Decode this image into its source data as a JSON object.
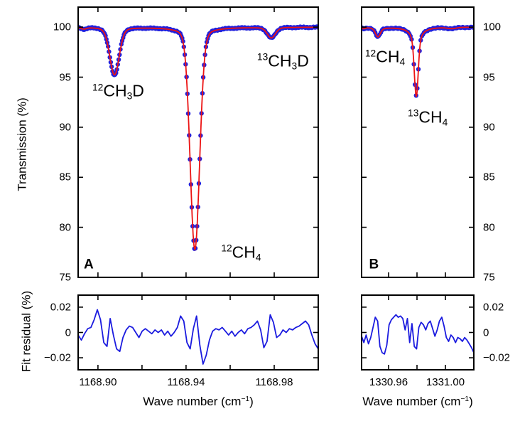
{
  "figure": {
    "background": "#ffffff",
    "colors": {
      "points": "#2121dd",
      "fit": "#ec1414",
      "residual": "#1b1bdf",
      "axes": "#000000"
    },
    "axis_titles": {
      "transmission": "Transmission (%)",
      "fit_residual": "Fit residual (%)",
      "wavenumber_prefix": "Wave number (cm",
      "wavenumber_sup": "−1",
      "wavenumber_suffix": ")"
    }
  },
  "chart_data": [
    {
      "id": "transmission-a",
      "type": "scatter+line",
      "panel_letter": "A",
      "xlim": [
        1168.891,
        1169.0
      ],
      "ylim": [
        75,
        102
      ],
      "baseline": 100,
      "sample_step": 0.0004,
      "y_label_side": "left",
      "show_x_tick_labels": false,
      "x_ticks": [
        {
          "v": 1168.9,
          "label": "1168.90"
        },
        {
          "v": 1168.92
        },
        {
          "v": 1168.94,
          "label": "1168.94"
        },
        {
          "v": 1168.96
        },
        {
          "v": 1168.98,
          "label": "1168.98"
        },
        {
          "v": 1169.0
        }
      ],
      "y_ticks": [
        {
          "v": 100,
          "label": "100"
        },
        {
          "v": 95,
          "label": "95"
        },
        {
          "v": 90,
          "label": "90"
        },
        {
          "v": 85,
          "label": "85"
        },
        {
          "v": 80,
          "label": "80"
        },
        {
          "v": 75,
          "label": "75"
        }
      ],
      "peaks": [
        {
          "species": "baseline-ripple",
          "center": 1168.8935,
          "depth": 0.15,
          "sigma": 0.0012,
          "lor_frac": 0.0,
          "gamma": 0.002
        },
        {
          "species": "12CH3D",
          "center": 1168.9075,
          "depth": 4.75,
          "sigma": 0.0021,
          "lor_frac": 0.12,
          "gamma": 0.0038
        },
        {
          "species": "12CH4",
          "center": 1168.944,
          "depth": 22.2,
          "sigma": 0.0021,
          "lor_frac": 0.1,
          "gamma": 0.0038
        },
        {
          "species": "13CH3D",
          "center": 1168.9787,
          "depth": 1.05,
          "sigma": 0.0018,
          "lor_frac": 0.15,
          "gamma": 0.0032
        }
      ],
      "annotations": [
        {
          "name": "species-label-12ch3d",
          "style": "species",
          "x": 1168.9092,
          "y": 93.6,
          "parts": [
            [
              "sup",
              "12"
            ],
            [
              "t",
              "CH"
            ],
            [
              "sub",
              "3"
            ],
            [
              "t",
              "D"
            ]
          ]
        },
        {
          "name": "species-label-13ch3d",
          "style": "species",
          "x": 1168.984,
          "y": 96.6,
          "parts": [
            [
              "sup",
              "13"
            ],
            [
              "t",
              "CH"
            ],
            [
              "sub",
              "3"
            ],
            [
              "t",
              "D"
            ]
          ]
        },
        {
          "name": "species-label-12ch4-a",
          "style": "species",
          "x": 1168.965,
          "y": 77.5,
          "parts": [
            [
              "sup",
              "12"
            ],
            [
              "t",
              "CH"
            ],
            [
              "sub",
              "4"
            ]
          ]
        },
        {
          "name": "panel-letter-a",
          "style": "letter",
          "x": 1168.8958,
          "y": 76.3,
          "parts": [
            [
              "t",
              "A"
            ]
          ]
        }
      ]
    },
    {
      "id": "transmission-b",
      "type": "scatter+line",
      "panel_letter": "B",
      "xlim": [
        1330.941,
        1331.02
      ],
      "ylim": [
        75,
        102
      ],
      "baseline": 100,
      "sample_step": 0.0008,
      "y_label_side": "right",
      "show_x_tick_labels": false,
      "x_ticks": [
        {
          "v": 1330.96,
          "label": "1330.96"
        },
        {
          "v": 1330.98
        },
        {
          "v": 1331.0,
          "label": "1331.00"
        }
      ],
      "y_ticks": [
        {
          "v": 100,
          "label": "100"
        },
        {
          "v": 95,
          "label": "95"
        },
        {
          "v": 90,
          "label": "90"
        },
        {
          "v": 85,
          "label": "85"
        },
        {
          "v": 80,
          "label": "80"
        },
        {
          "v": 75,
          "label": "75"
        }
      ],
      "peaks": [
        {
          "species": "baseline-ripple",
          "center": 1330.9425,
          "depth": 0.12,
          "sigma": 0.0012,
          "lor_frac": 0.0,
          "gamma": 0.002
        },
        {
          "species": "12CH4",
          "center": 1330.9525,
          "depth": 0.95,
          "sigma": 0.0016,
          "lor_frac": 0.25,
          "gamma": 0.004
        },
        {
          "species": "13CH4",
          "center": 1330.9795,
          "depth": 6.9,
          "sigma": 0.0013,
          "lor_frac": 0.3,
          "gamma": 0.00325
        },
        {
          "species": "baseline-ripple-2",
          "center": 1331.0045,
          "depth": 0.12,
          "sigma": 0.003,
          "lor_frac": 0.0,
          "gamma": 0.004
        }
      ],
      "annotations": [
        {
          "name": "species-label-12ch4-b",
          "style": "species",
          "x": 1330.9575,
          "y": 97.0,
          "parts": [
            [
              "sup",
              "12"
            ],
            [
              "t",
              "CH"
            ],
            [
              "sub",
              "4"
            ]
          ]
        },
        {
          "name": "species-label-13ch4-b",
          "style": "species",
          "x": 1330.9876,
          "y": 91.0,
          "parts": [
            [
              "sup",
              "13"
            ],
            [
              "t",
              "CH"
            ],
            [
              "sub",
              "4"
            ]
          ]
        },
        {
          "name": "panel-letter-b",
          "style": "letter",
          "x": 1330.9497,
          "y": 76.3,
          "parts": [
            [
              "t",
              "B"
            ]
          ]
        }
      ]
    },
    {
      "id": "residual-a",
      "type": "line",
      "xlim": [
        1168.891,
        1169.0
      ],
      "ylim": [
        -0.0295,
        0.0295
      ],
      "y_label_side": "left",
      "show_x_tick_labels": true,
      "x_ticks": [
        {
          "v": 1168.9,
          "label": "1168.90"
        },
        {
          "v": 1168.92
        },
        {
          "v": 1168.94,
          "label": "1168.94"
        },
        {
          "v": 1168.96
        },
        {
          "v": 1168.98,
          "label": "1168.98"
        },
        {
          "v": 1169.0
        }
      ],
      "y_ticks": [
        {
          "v": 0.02,
          "label": "0.02"
        },
        {
          "v": 0,
          "label": "0"
        },
        {
          "v": -0.02,
          "label": "−0.02"
        }
      ],
      "values": [
        -0.002,
        -0.006,
        -0.001,
        0.003,
        0.004,
        0.01,
        0.018,
        0.01,
        -0.008,
        -0.011,
        0.011,
        -0.002,
        -0.013,
        -0.015,
        -0.004,
        0.002,
        0.005,
        0.004,
        0.0,
        -0.004,
        0.001,
        0.003,
        0.001,
        -0.001,
        0.002,
        0.0,
        0.002,
        -0.002,
        0.001,
        -0.003,
        0.0,
        0.004,
        0.013,
        0.009,
        -0.008,
        -0.013,
        0.003,
        0.013,
        -0.01,
        -0.025,
        -0.018,
        -0.006,
        0.001,
        0.003,
        0.002,
        0.004,
        0.001,
        -0.002,
        0.001,
        -0.003,
        0.0,
        0.002,
        -0.001,
        0.003,
        0.004,
        0.006,
        0.009,
        0.002,
        -0.012,
        -0.007,
        0.014,
        0.008,
        -0.004,
        -0.002,
        0.002,
        0.0,
        0.003,
        0.002,
        0.004,
        0.005,
        0.007,
        0.009,
        0.006,
        -0.002,
        -0.009,
        -0.013
      ]
    },
    {
      "id": "residual-b",
      "type": "line",
      "xlim": [
        1330.941,
        1331.02
      ],
      "ylim": [
        -0.0295,
        0.0295
      ],
      "y_label_side": "right",
      "show_x_tick_labels": true,
      "x_ticks": [
        {
          "v": 1330.96,
          "label": "1330.96"
        },
        {
          "v": 1330.98
        },
        {
          "v": 1331.0,
          "label": "1331.00"
        }
      ],
      "y_ticks": [
        {
          "v": 0.02,
          "label": "0.02"
        },
        {
          "v": 0,
          "label": "0"
        },
        {
          "v": -0.02,
          "label": "−0.02"
        }
      ],
      "values": [
        -0.003,
        -0.008,
        -0.002,
        -0.009,
        -0.004,
        0.004,
        0.012,
        0.009,
        -0.011,
        -0.016,
        -0.017,
        -0.01,
        0.006,
        0.01,
        0.012,
        0.014,
        0.012,
        0.013,
        0.011,
        0.002,
        0.011,
        -0.008,
        0.007,
        -0.011,
        -0.013,
        0.004,
        0.008,
        0.006,
        0.002,
        0.007,
        0.009,
        0.003,
        -0.003,
        0.002,
        0.009,
        0.012,
        0.005,
        -0.004,
        -0.007,
        -0.002,
        -0.004,
        -0.008,
        -0.004,
        -0.005,
        -0.007,
        -0.004,
        -0.006,
        -0.009,
        -0.012,
        -0.016
      ]
    }
  ]
}
